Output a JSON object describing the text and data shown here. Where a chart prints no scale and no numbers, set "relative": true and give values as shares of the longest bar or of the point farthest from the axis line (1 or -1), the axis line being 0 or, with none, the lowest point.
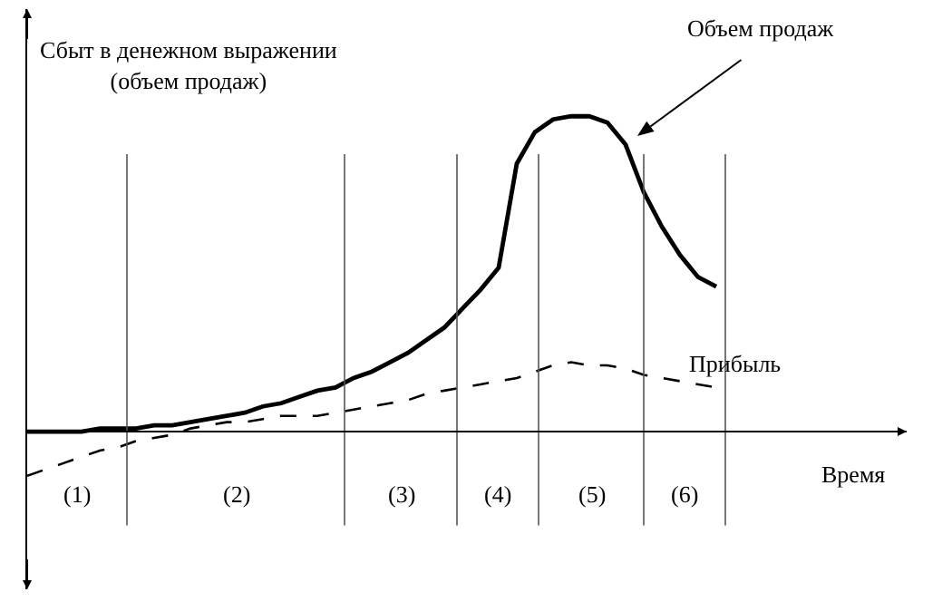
{
  "chart_data": {
    "type": "line",
    "relative": true,
    "xlabel": "Время",
    "ylabel": "Сбыт в денежном выражении\n(объем продаж)",
    "categories": [
      null,
      null,
      null,
      null,
      null,
      null,
      null,
      null,
      null,
      null,
      null,
      null,
      null,
      null,
      null,
      null,
      null,
      null,
      null,
      null,
      null,
      null,
      null,
      null,
      null,
      null,
      null,
      null,
      null,
      null,
      null,
      null,
      null,
      null,
      null,
      null,
      null,
      null,
      null
    ],
    "series": [
      {
        "name": "Объем продаж",
        "color": "#000000",
        "line_style": "solid",
        "values": [
          0,
          0,
          0,
          0,
          0.01,
          0.01,
          0.01,
          0.02,
          0.02,
          0.03,
          0.04,
          0.05,
          0.06,
          0.08,
          0.09,
          0.11,
          0.13,
          0.14,
          0.17,
          0.19,
          0.22,
          0.25,
          0.29,
          0.33,
          0.39,
          0.45,
          0.52,
          0.85,
          0.95,
          0.99,
          1,
          1,
          0.98,
          0.91,
          0.76,
          0.65,
          0.56,
          0.49,
          0.46
        ]
      },
      {
        "name": "Прибыль",
        "color": "#000000",
        "line_style": "dashed",
        "values": [
          -0.14,
          -0.12,
          -0.1,
          -0.08,
          -0.06,
          -0.05,
          -0.03,
          -0.02,
          -0.01,
          0.01,
          0.02,
          0.03,
          0.03,
          0.04,
          0.05,
          0.05,
          0.05,
          0.06,
          0.07,
          0.08,
          0.09,
          0.1,
          0.12,
          0.13,
          0.14,
          0.15,
          0.16,
          0.17,
          0.19,
          0.21,
          0.22,
          0.21,
          0.21,
          0.2,
          0.18,
          0.17,
          0.16,
          0.15,
          0.14
        ]
      }
    ],
    "annotations": [
      "(1)",
      "(2)",
      "(3)",
      "(4)",
      "(5)",
      "(6)"
    ],
    "legend": false,
    "marker": "none"
  }
}
